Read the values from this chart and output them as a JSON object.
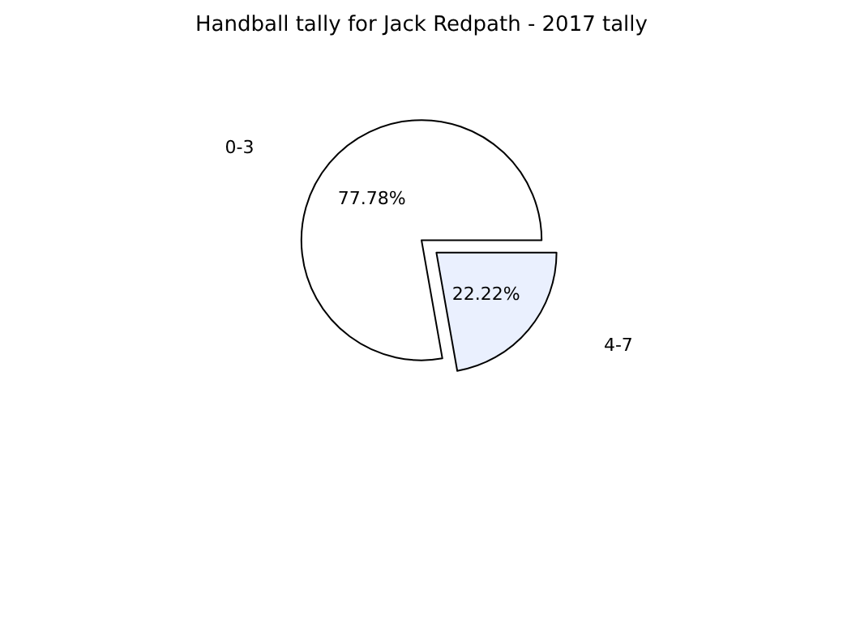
{
  "chart_data": {
    "type": "pie",
    "title": "Handball tally for Jack Redpath - 2017 tally",
    "categories": [
      "0-3",
      "4-7"
    ],
    "values": [
      77.78,
      22.22
    ],
    "colors": [
      "#ffffff",
      "#eaf0fe"
    ],
    "value_labels": [
      "77.78%",
      "22.22%"
    ]
  }
}
